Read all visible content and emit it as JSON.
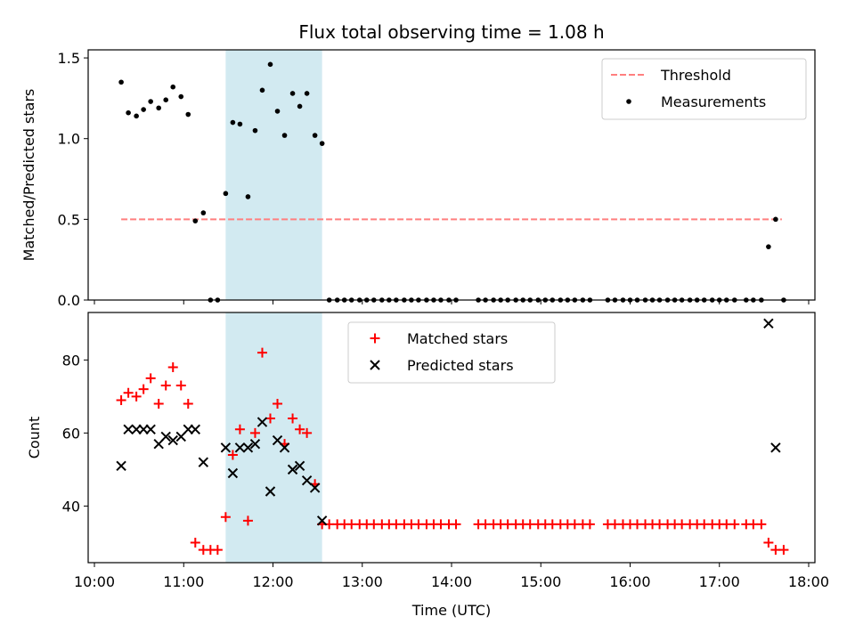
{
  "figure": {
    "title": "Flux total observing time = 1.08 h",
    "xlabel": "Time (UTC)"
  },
  "chart_data": [
    {
      "type": "scatter",
      "ylabel": "Matched/Predicted stars",
      "ylim": [
        0,
        1.55
      ],
      "yticks": [
        0,
        0.5,
        1,
        1.5
      ],
      "ytick_labels": [
        "0.0",
        "0.5",
        "1.0",
        "1.5"
      ],
      "xlim_hours": [
        9.93,
        18.07
      ],
      "xticks_hours": [
        10,
        11,
        12,
        13,
        14,
        15,
        16,
        17,
        18
      ],
      "xtick_labels": [
        "10:00",
        "11:00",
        "12:00",
        "13:00",
        "14:00",
        "15:00",
        "16:00",
        "17:00",
        "18:00"
      ],
      "shaded_span_hours": [
        11.47,
        12.55
      ],
      "shade_color": "#add8e6",
      "legend": [
        "Threshold",
        "Measurements"
      ],
      "legend_position": "upper right",
      "series": [
        {
          "name": "Threshold",
          "style": "dashed-line",
          "color": "#ff7f7f",
          "x": [
            10.3,
            17.7
          ],
          "y": [
            0.5,
            0.5
          ]
        },
        {
          "name": "Measurements",
          "style": "dot",
          "color": "#000000",
          "x": [
            10.3,
            10.38,
            10.47,
            10.55,
            10.63,
            10.72,
            10.8,
            10.88,
            10.97,
            11.05,
            11.13,
            11.22,
            11.3,
            11.38,
            11.47,
            11.55,
            11.63,
            11.72,
            11.8,
            11.88,
            11.97,
            12.05,
            12.13,
            12.22,
            12.3,
            12.38,
            12.47,
            12.55,
            12.63,
            12.72,
            12.8,
            12.88,
            12.97,
            13.05,
            13.13,
            13.22,
            13.3,
            13.38,
            13.47,
            13.55,
            13.63,
            13.72,
            13.8,
            13.88,
            13.97,
            14.05,
            14.3,
            14.38,
            14.47,
            14.55,
            14.63,
            14.72,
            14.8,
            14.88,
            14.97,
            15.05,
            15.13,
            15.22,
            15.3,
            15.38,
            15.47,
            15.55,
            15.75,
            15.83,
            15.92,
            16.0,
            16.08,
            16.17,
            16.25,
            16.33,
            16.42,
            16.5,
            16.58,
            16.67,
            16.75,
            16.83,
            16.92,
            17.0,
            17.08,
            17.17,
            17.3,
            17.38,
            17.47,
            17.55,
            17.63,
            17.72
          ],
          "y": [
            1.35,
            1.16,
            1.14,
            1.18,
            1.23,
            1.19,
            1.24,
            1.32,
            1.26,
            1.15,
            0.49,
            0.54,
            0.0,
            0.0,
            0.66,
            1.1,
            1.09,
            0.64,
            1.05,
            1.3,
            1.46,
            1.17,
            1.02,
            1.28,
            1.2,
            1.28,
            1.02,
            0.97,
            0.0,
            0.0,
            0.0,
            0.0,
            0.0,
            0.0,
            0.0,
            0.0,
            0.0,
            0.0,
            0.0,
            0.0,
            0.0,
            0.0,
            0.0,
            0.0,
            0.0,
            0.0,
            0.0,
            0.0,
            0.0,
            0.0,
            0.0,
            0.0,
            0.0,
            0.0,
            0.0,
            0.0,
            0.0,
            0.0,
            0.0,
            0.0,
            0.0,
            0.0,
            0.0,
            0.0,
            0.0,
            0.0,
            0.0,
            0.0,
            0.0,
            0.0,
            0.0,
            0.0,
            0.0,
            0.0,
            0.0,
            0.0,
            0.0,
            0.0,
            0.0,
            0.0,
            0.0,
            0.0,
            0.0,
            0.33,
            0.5,
            0.0
          ]
        }
      ]
    },
    {
      "type": "scatter",
      "ylabel": "Count",
      "ylim": [
        24.5,
        93
      ],
      "yticks": [
        40,
        60,
        80
      ],
      "ytick_labels": [
        "40",
        "60",
        "80"
      ],
      "xlim_hours": [
        9.93,
        18.07
      ],
      "xticks_hours": [
        10,
        11,
        12,
        13,
        14,
        15,
        16,
        17,
        18
      ],
      "xtick_labels": [
        "10:00",
        "11:00",
        "12:00",
        "13:00",
        "14:00",
        "15:00",
        "16:00",
        "17:00",
        "18:00"
      ],
      "shaded_span_hours": [
        11.47,
        12.55
      ],
      "shade_color": "#add8e6",
      "legend": [
        "Matched stars",
        "Predicted stars"
      ],
      "legend_position": "upper center",
      "series": [
        {
          "name": "Matched stars",
          "marker": "plus",
          "color": "#ff0000",
          "x": [
            10.3,
            10.38,
            10.47,
            10.55,
            10.63,
            10.72,
            10.8,
            10.88,
            10.97,
            11.05,
            11.13,
            11.22,
            11.3,
            11.38,
            11.47,
            11.55,
            11.63,
            11.72,
            11.8,
            11.88,
            11.97,
            12.05,
            12.13,
            12.22,
            12.3,
            12.38,
            12.47,
            12.55,
            12.63,
            12.72,
            12.8,
            12.88,
            12.97,
            13.05,
            13.13,
            13.22,
            13.3,
            13.38,
            13.47,
            13.55,
            13.63,
            13.72,
            13.8,
            13.88,
            13.97,
            14.05,
            14.3,
            14.38,
            14.47,
            14.55,
            14.63,
            14.72,
            14.8,
            14.88,
            14.97,
            15.05,
            15.13,
            15.22,
            15.3,
            15.38,
            15.47,
            15.55,
            15.75,
            15.83,
            15.92,
            16.0,
            16.08,
            16.17,
            16.25,
            16.33,
            16.42,
            16.5,
            16.58,
            16.67,
            16.75,
            16.83,
            16.92,
            17.0,
            17.08,
            17.17,
            17.3,
            17.38,
            17.47,
            17.55,
            17.63,
            17.72
          ],
          "y": [
            69,
            71,
            70,
            72,
            75,
            68,
            73,
            78,
            73,
            68,
            30,
            28,
            28,
            28,
            37,
            54,
            61,
            36,
            60,
            82,
            64,
            68,
            57,
            64,
            61,
            60,
            46,
            35,
            35,
            35,
            35,
            35,
            35,
            35,
            35,
            35,
            35,
            35,
            35,
            35,
            35,
            35,
            35,
            35,
            35,
            35,
            35,
            35,
            35,
            35,
            35,
            35,
            35,
            35,
            35,
            35,
            35,
            35,
            35,
            35,
            35,
            35,
            35,
            35,
            35,
            35,
            35,
            35,
            35,
            35,
            35,
            35,
            35,
            35,
            35,
            35,
            35,
            35,
            35,
            35,
            35,
            35,
            35,
            30,
            28,
            28
          ]
        },
        {
          "name": "Predicted stars",
          "marker": "x",
          "color": "#000000",
          "x": [
            10.3,
            10.38,
            10.47,
            10.55,
            10.63,
            10.72,
            10.8,
            10.88,
            10.97,
            11.05,
            11.13,
            11.22,
            11.47,
            11.55,
            11.63,
            11.72,
            11.8,
            11.88,
            11.97,
            12.05,
            12.13,
            12.22,
            12.3,
            12.38,
            12.47,
            12.55,
            17.55,
            17.63
          ],
          "y": [
            51,
            61,
            61,
            61,
            61,
            57,
            59,
            58,
            59,
            61,
            61,
            52,
            56,
            49,
            56,
            56,
            57,
            63,
            44,
            58,
            56,
            50,
            51,
            47,
            45,
            36,
            90,
            56
          ]
        }
      ]
    }
  ]
}
